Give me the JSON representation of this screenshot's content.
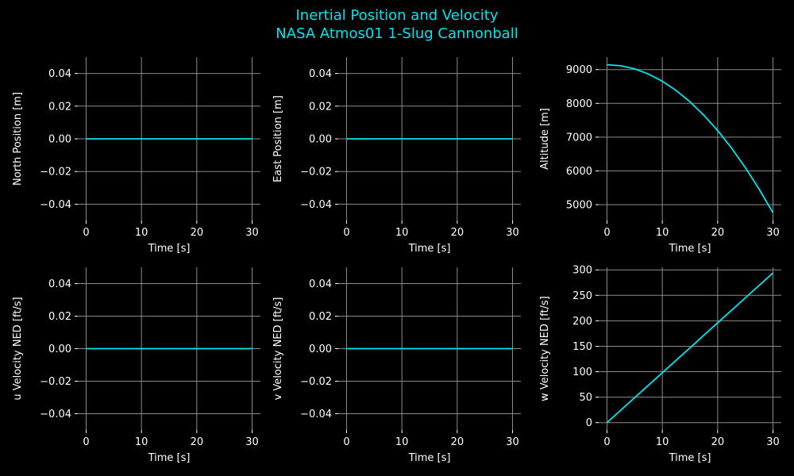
{
  "figure": {
    "title_line1": "Inertial Position and Velocity",
    "title_line2": "NASA Atmos01 1-Slug Cannonball",
    "background": "#000000",
    "line_color": "#00e5ee",
    "grid_color": "#8c8c8c",
    "text_color": "#ffffff"
  },
  "chart_data": [
    {
      "type": "line",
      "xlabel": "Time [s]",
      "ylabel": "North Position [m]",
      "xlim": [
        -1.5,
        31.5
      ],
      "ylim": [
        -0.05,
        0.05
      ],
      "xticks": [
        0,
        10,
        20,
        30
      ],
      "yticks": [
        -0.04,
        -0.02,
        0.0,
        0.02,
        0.04
      ],
      "ytick_labels": [
        "−0.04",
        "−0.02",
        "0.00",
        "0.02",
        "0.04"
      ],
      "grid": true,
      "x": [
        0,
        5,
        10,
        15,
        20,
        25,
        30
      ],
      "y": [
        0,
        0,
        0,
        0,
        0,
        0,
        0
      ]
    },
    {
      "type": "line",
      "xlabel": "Time [s]",
      "ylabel": "East Position [m]",
      "xlim": [
        -1.5,
        31.5
      ],
      "ylim": [
        -0.05,
        0.05
      ],
      "xticks": [
        0,
        10,
        20,
        30
      ],
      "yticks": [
        -0.04,
        -0.02,
        0.0,
        0.02,
        0.04
      ],
      "ytick_labels": [
        "−0.04",
        "−0.02",
        "0.00",
        "0.02",
        "0.04"
      ],
      "grid": true,
      "x": [
        0,
        5,
        10,
        15,
        20,
        25,
        30
      ],
      "y": [
        0,
        0,
        0,
        0,
        0,
        0,
        0
      ]
    },
    {
      "type": "line",
      "xlabel": "Time [s]",
      "ylabel": "Altitude [m]",
      "xlim": [
        -1.5,
        31.5
      ],
      "ylim": [
        4530,
        9370
      ],
      "xticks": [
        0,
        10,
        20,
        30
      ],
      "yticks": [
        5000,
        6000,
        7000,
        8000,
        9000
      ],
      "ytick_labels": [
        "5000",
        "6000",
        "7000",
        "8000",
        "9000"
      ],
      "grid": true,
      "x": [
        0,
        2.5,
        5,
        7.5,
        10,
        12.5,
        15,
        17.5,
        20,
        22.5,
        25,
        27.5,
        30
      ],
      "y": [
        9144,
        9113,
        9022,
        8869,
        8656,
        8382,
        8047,
        7652,
        7196,
        6678,
        6100,
        5461,
        4762
      ]
    },
    {
      "type": "line",
      "xlabel": "Time [s]",
      "ylabel": "u Velocity NED [ft/s]",
      "xlim": [
        -1.5,
        31.5
      ],
      "ylim": [
        -0.05,
        0.05
      ],
      "xticks": [
        0,
        10,
        20,
        30
      ],
      "yticks": [
        -0.04,
        -0.02,
        0.0,
        0.02,
        0.04
      ],
      "ytick_labels": [
        "−0.04",
        "−0.02",
        "0.00",
        "0.02",
        "0.04"
      ],
      "grid": true,
      "x": [
        0,
        5,
        10,
        15,
        20,
        25,
        30
      ],
      "y": [
        0,
        0,
        0,
        0,
        0,
        0,
        0
      ]
    },
    {
      "type": "line",
      "xlabel": "Time [s]",
      "ylabel": "v Velocity NED [ft/s]",
      "xlim": [
        -1.5,
        31.5
      ],
      "ylim": [
        -0.05,
        0.05
      ],
      "xticks": [
        0,
        10,
        20,
        30
      ],
      "yticks": [
        -0.04,
        -0.02,
        0.0,
        0.02,
        0.04
      ],
      "ytick_labels": [
        "−0.04",
        "−0.02",
        "0.00",
        "0.02",
        "0.04"
      ],
      "grid": true,
      "x": [
        0,
        5,
        10,
        15,
        20,
        25,
        30
      ],
      "y": [
        0,
        0,
        0,
        0,
        0,
        0,
        0
      ]
    },
    {
      "type": "line",
      "xlabel": "Time [s]",
      "ylabel": "w Velocity NED [ft/s]",
      "xlim": [
        -1.5,
        31.5
      ],
      "ylim": [
        -14.5,
        305
      ],
      "xticks": [
        0,
        10,
        20,
        30
      ],
      "yticks": [
        0,
        50,
        100,
        150,
        200,
        250,
        300
      ],
      "ytick_labels": [
        "0",
        "50",
        "100",
        "150",
        "200",
        "250",
        "300"
      ],
      "grid": true,
      "x": [
        0,
        5,
        10,
        15,
        20,
        25,
        30
      ],
      "y": [
        0,
        49,
        98,
        147,
        196,
        245,
        294
      ]
    }
  ]
}
